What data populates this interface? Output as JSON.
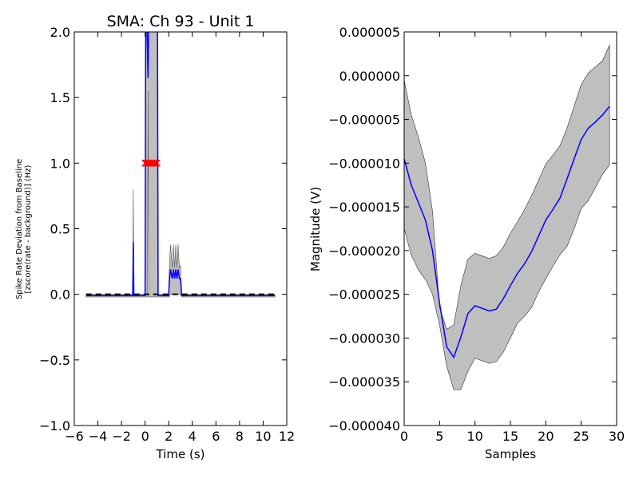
{
  "chart_data": [
    {
      "type": "line",
      "title": "SMA: Ch 93 - Unit 1",
      "xlabel": "Time (s)",
      "ylabel_line1": "Spike Rate Deviation from Baseline",
      "ylabel_line2": "[zscore(rate - background)] (Hz)",
      "xlim": [
        -6,
        12
      ],
      "ylim": [
        -1.0,
        2.0
      ],
      "xticks": [
        "−6",
        "−4",
        "−2",
        "0",
        "2",
        "4",
        "6",
        "8",
        "10",
        "12"
      ],
      "yticks": [
        "−1.0",
        "−0.5",
        "0.0",
        "0.5",
        "1.0",
        "1.5",
        "2.0"
      ],
      "grid": false,
      "colors": {
        "mean": "#0000ff",
        "band": "#bfbfbf",
        "baseline": "#000000",
        "marker": "#ff0000"
      },
      "series": [
        {
          "role": "mean",
          "x": [
            -5,
            -1.2,
            -1.05,
            -1,
            -0.95,
            -0.8,
            0,
            0.05,
            0.15,
            0.25,
            0.3,
            0.35,
            0.45
          ],
          "y": [
            -0.01,
            -0.01,
            -0.01,
            0.4,
            -0.01,
            -0.01,
            -0.01,
            2.05,
            2.05,
            1.65,
            2.05,
            2.05,
            2.05
          ]
        },
        {
          "role": "mean",
          "x": [
            1.0,
            1.05,
            1.1,
            1.2,
            1.5,
            2.0,
            2.05,
            2.15,
            2.3,
            2.4,
            2.5,
            2.6,
            2.7,
            2.8,
            2.9,
            3.0,
            3.1,
            3.2,
            11
          ],
          "y": [
            2.05,
            2.05,
            -0.01,
            -0.01,
            -0.01,
            -0.01,
            0.1,
            0.19,
            0.12,
            0.19,
            0.12,
            0.19,
            0.12,
            0.19,
            0.12,
            0.12,
            -0.01,
            -0.01,
            -0.01
          ]
        },
        {
          "role": "band_upper",
          "x": [
            -5,
            -1.2,
            -1.05,
            -1,
            -0.95,
            -0.8,
            0,
            0.05,
            0.2,
            0.25,
            0.3,
            0.35,
            0.45,
            1.0,
            1.05,
            1.1,
            1.2,
            2.0,
            2.05,
            2.15,
            2.3,
            2.4,
            2.5,
            2.6,
            2.7,
            2.8,
            2.9,
            3.0,
            3.1,
            3.2,
            11
          ],
          "y": [
            0.0,
            0.0,
            0.0,
            0.8,
            0.0,
            0.0,
            0.0,
            2.05,
            2.05,
            1.75,
            2.05,
            2.05,
            2.05,
            2.05,
            2.05,
            0.0,
            0.0,
            0.0,
            0.2,
            0.38,
            0.2,
            0.38,
            0.2,
            0.38,
            0.2,
            0.38,
            0.2,
            0.22,
            0.0,
            0.0,
            0.0
          ]
        },
        {
          "role": "band_lower",
          "x": [
            -5,
            -1.2,
            -1.05,
            -1,
            -0.95,
            -0.8,
            0,
            0.05,
            0.2,
            0.25,
            0.3,
            0.35,
            0.45,
            1.0,
            1.05,
            1.1,
            1.2,
            2.0,
            2.05,
            2.15,
            2.3,
            2.4,
            2.5,
            2.6,
            2.7,
            2.8,
            2.9,
            3.0,
            3.1,
            3.2,
            11
          ],
          "y": [
            -0.02,
            -0.02,
            -0.02,
            -0.02,
            -0.02,
            -0.02,
            -0.02,
            -0.02,
            -0.02,
            1.55,
            -0.02,
            -0.02,
            -0.02,
            -0.02,
            -0.02,
            -0.02,
            -0.02,
            -0.02,
            -0.02,
            0.0,
            0.0,
            0.0,
            0.0,
            0.0,
            0.0,
            0.0,
            0.0,
            0.0,
            -0.02,
            -0.02,
            -0.02
          ]
        },
        {
          "role": "baseline",
          "x": [
            -5,
            11
          ],
          "y": [
            0,
            0
          ]
        }
      ],
      "markers": {
        "x": [
          0.0,
          0.1,
          0.2,
          0.3,
          0.4,
          0.5,
          0.6,
          0.7,
          0.8,
          0.9,
          1.0
        ],
        "y": [
          1.0,
          1.0,
          1.0,
          1.0,
          1.0,
          1.0,
          1.0,
          1.0,
          1.0,
          1.0,
          1.0
        ]
      }
    },
    {
      "type": "line",
      "title": "",
      "xlabel": "Samples",
      "ylabel": "Magnitude (V)",
      "xlim": [
        0,
        30
      ],
      "ylim": [
        -4e-05,
        5e-06
      ],
      "xticks": [
        "0",
        "5",
        "10",
        "15",
        "20",
        "25",
        "30"
      ],
      "yticks": [
        "−0.000040",
        "−0.000035",
        "−0.000030",
        "−0.000025",
        "−0.000020",
        "−0.000015",
        "−0.000010",
        "−0.000005",
        "0.000000",
        "0.000005"
      ],
      "grid": false,
      "colors": {
        "mean": "#0000ff",
        "band": "#bfbfbf"
      },
      "x": [
        0,
        1,
        2,
        3,
        4,
        5,
        6,
        7,
        8,
        9,
        10,
        11,
        12,
        13,
        14,
        15,
        16,
        17,
        18,
        19,
        20,
        21,
        22,
        23,
        24,
        25,
        26,
        27,
        28,
        29
      ],
      "series": [
        {
          "role": "mean",
          "values": [
            -9.5e-06,
            -1.25e-05,
            -1.45e-05,
            -1.65e-05,
            -2e-05,
            -2.6e-05,
            -3.1e-05,
            -3.22e-05,
            -2.99e-05,
            -2.72e-05,
            -2.63e-05,
            -2.66e-05,
            -2.69e-05,
            -2.67e-05,
            -2.55e-05,
            -2.4e-05,
            -2.26e-05,
            -2.15e-05,
            -2.01e-05,
            -1.83e-05,
            -1.65e-05,
            -1.53e-05,
            -1.4e-05,
            -1.18e-05,
            -9.5e-06,
            -7.3e-06,
            -6e-06,
            -5.3e-06,
            -4.5e-06,
            -3.5e-06
          ]
        },
        {
          "role": "band_upper",
          "values": [
            -5e-07,
            -4.5e-06,
            -7e-06,
            -1e-05,
            -1.55e-05,
            -2.65e-05,
            -2.9e-05,
            -2.85e-05,
            -2.4e-05,
            -2.1e-05,
            -2.03e-05,
            -2.06e-05,
            -2.09e-05,
            -2.06e-05,
            -1.96e-05,
            -1.8e-05,
            -1.67e-05,
            -1.53e-05,
            -1.37e-05,
            -1.19e-05,
            -1.01e-05,
            -9.1e-06,
            -8e-06,
            -6e-06,
            -3.5e-06,
            -1e-06,
            3e-07,
            1e-06,
            1.7e-06,
            3.5e-06
          ]
        },
        {
          "role": "band_lower",
          "values": [
            -1.75e-05,
            -2.05e-05,
            -2.22e-05,
            -2.33e-05,
            -2.5e-05,
            -2.85e-05,
            -3.32e-05,
            -3.59e-05,
            -3.59e-05,
            -3.38e-05,
            -3.23e-05,
            -3.26e-05,
            -3.29e-05,
            -3.27e-05,
            -3.16e-05,
            -3e-05,
            -2.83e-05,
            -2.75e-05,
            -2.65e-05,
            -2.47e-05,
            -2.32e-05,
            -2.18e-05,
            -2.05e-05,
            -1.95e-05,
            -1.75e-05,
            -1.52e-05,
            -1.43e-05,
            -1.28e-05,
            -1.13e-05,
            -1.02e-05
          ]
        }
      ]
    }
  ]
}
